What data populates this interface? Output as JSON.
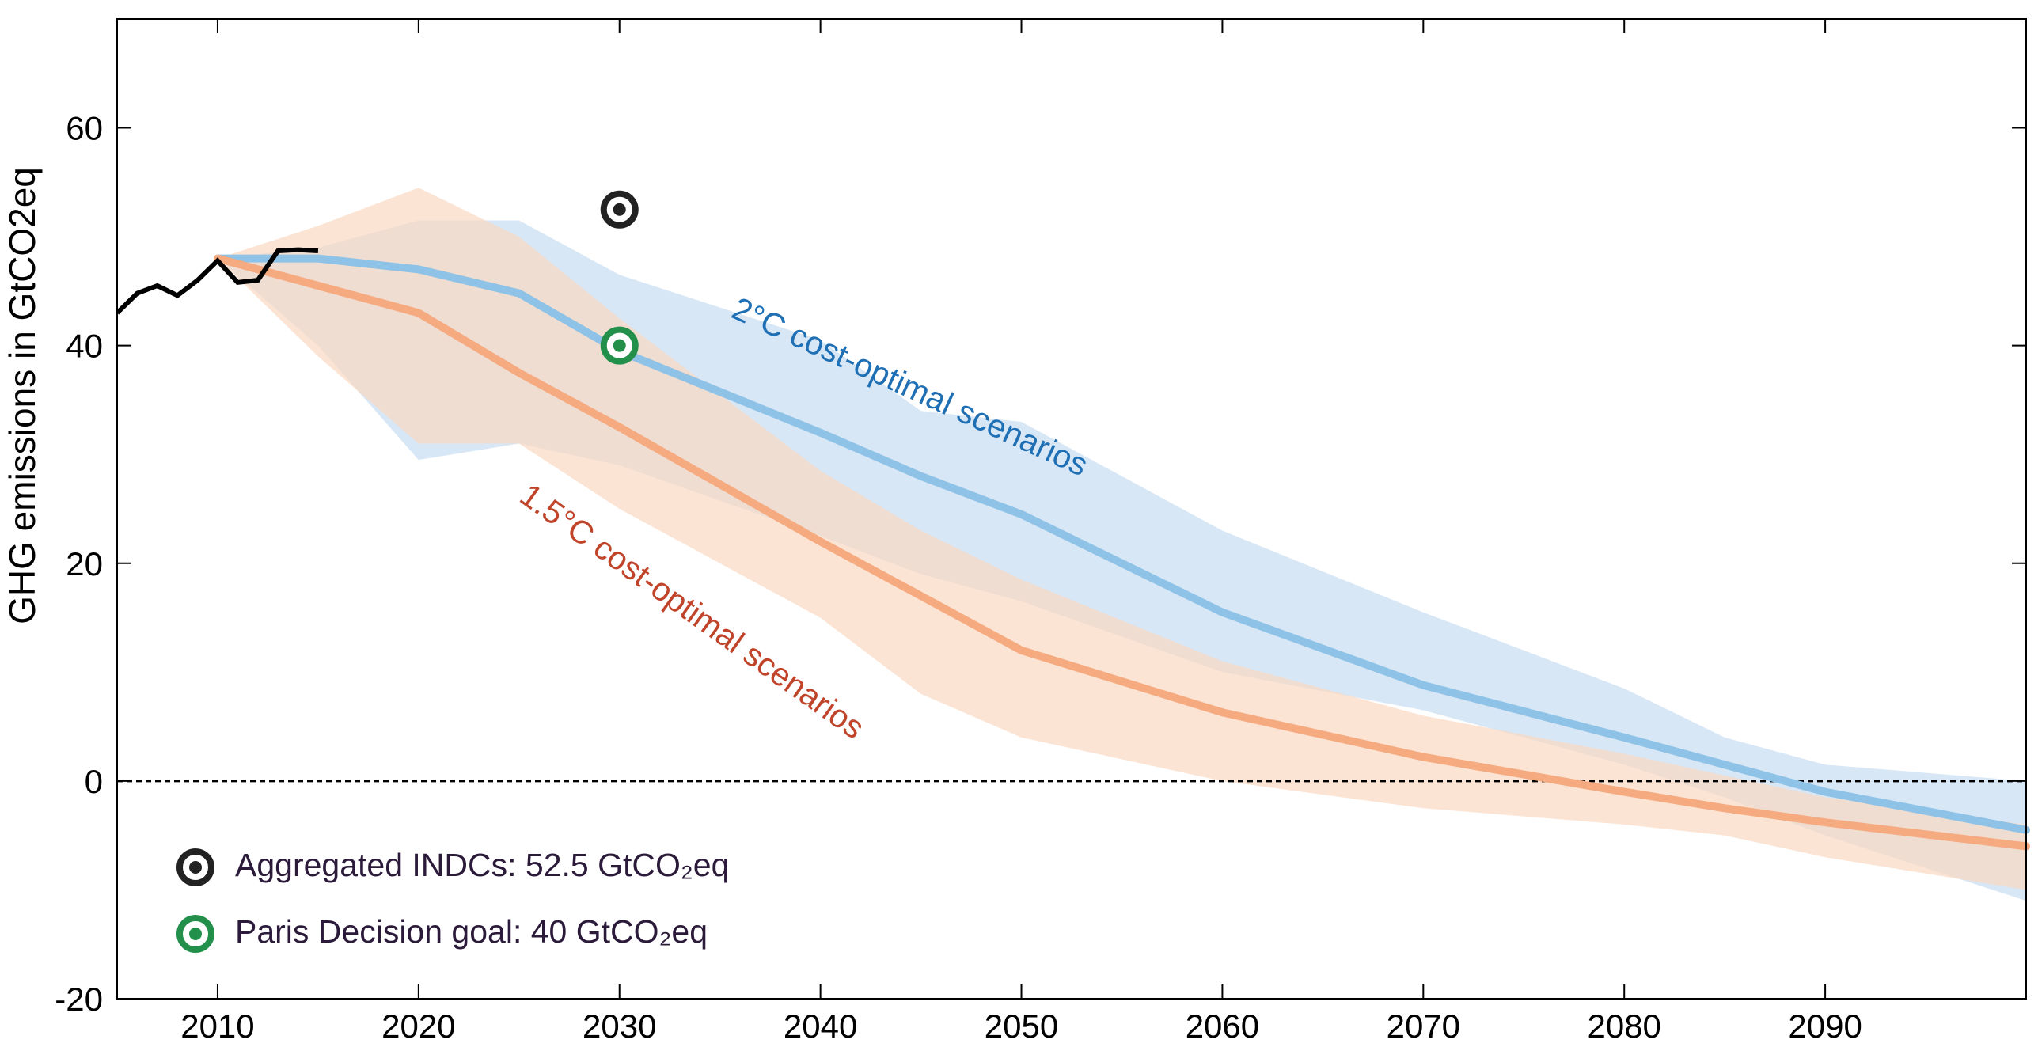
{
  "chart_data": {
    "type": "line",
    "ylabel": "GHG emissions in GtCO2eq",
    "xlim": [
      2005,
      2100
    ],
    "ylim": [
      -20,
      70
    ],
    "x_ticks": [
      2010,
      2020,
      2030,
      2040,
      2050,
      2060,
      2070,
      2080,
      2090
    ],
    "y_ticks": [
      -20,
      0,
      20,
      40,
      60
    ],
    "grid": false,
    "zero_line": "dashed",
    "historical": {
      "x": [
        2005,
        2006,
        2007,
        2008,
        2009,
        2010,
        2011,
        2012,
        2013,
        2014,
        2015
      ],
      "y": [
        43.0,
        44.8,
        45.5,
        44.6,
        46.0,
        47.8,
        45.8,
        46.0,
        48.7,
        48.8,
        48.7
      ],
      "color": "#000000"
    },
    "series": [
      {
        "name": "2°C cost-optimal scenarios",
        "line_color": "#8ec2e6",
        "band_color": "#d6e6f6",
        "label_color": "#1f6fb5",
        "x": [
          2010,
          2015,
          2020,
          2025,
          2030,
          2040,
          2045,
          2050,
          2060,
          2070,
          2080,
          2085,
          2090,
          2100
        ],
        "y": [
          48.0,
          48.0,
          47.0,
          44.8,
          39.5,
          32.0,
          28.0,
          24.5,
          15.5,
          8.8,
          4.0,
          1.5,
          -1.0,
          -4.5
        ],
        "band_upper": [
          48,
          49.0,
          51.5,
          51.5,
          46.5,
          40.5,
          34.0,
          33.0,
          23.0,
          15.5,
          8.5,
          4.0,
          1.5,
          0.0
        ],
        "band_lower": [
          48,
          40.0,
          29.5,
          31.0,
          29.0,
          22.5,
          19.0,
          16.5,
          10.0,
          6.5,
          1.5,
          -1.5,
          -5.0,
          -11.0
        ]
      },
      {
        "name": "1.5°C cost-optimal scenarios",
        "line_color": "#f5aa80",
        "band_color": "#fbd9c2",
        "label_color": "#c0442a",
        "x": [
          2010,
          2015,
          2020,
          2025,
          2030,
          2040,
          2045,
          2050,
          2060,
          2070,
          2080,
          2085,
          2090,
          2100
        ],
        "y": [
          48.0,
          45.5,
          43.0,
          37.5,
          32.5,
          22.0,
          17.0,
          12.0,
          6.3,
          2.2,
          -1.0,
          -2.5,
          -3.8,
          -6.0
        ],
        "band_upper": [
          48,
          51.0,
          54.5,
          50.0,
          42.5,
          28.5,
          23.0,
          18.5,
          11.0,
          6.0,
          2.5,
          0.5,
          -1.5,
          -4.0
        ],
        "band_lower": [
          48,
          39.0,
          31.0,
          31.0,
          25.0,
          15.0,
          8.0,
          4.0,
          0.0,
          -2.5,
          -4.0,
          -5.0,
          -7.0,
          -10.0
        ]
      }
    ],
    "points": [
      {
        "name": "Aggregated INDCs",
        "x": 2030,
        "y": 52.5,
        "color": "#222222"
      },
      {
        "name": "Paris Decision goal",
        "x": 2030,
        "y": 40.0,
        "color": "#22904a"
      }
    ],
    "legend": {
      "placement": "bottom-left",
      "entries": [
        {
          "text": "Aggregated INDCs: 52.5 GtCO₂eq",
          "color": "#222222"
        },
        {
          "text": "Paris Decision goal: 40 GtCO₂eq",
          "color": "#22904a"
        }
      ]
    }
  }
}
